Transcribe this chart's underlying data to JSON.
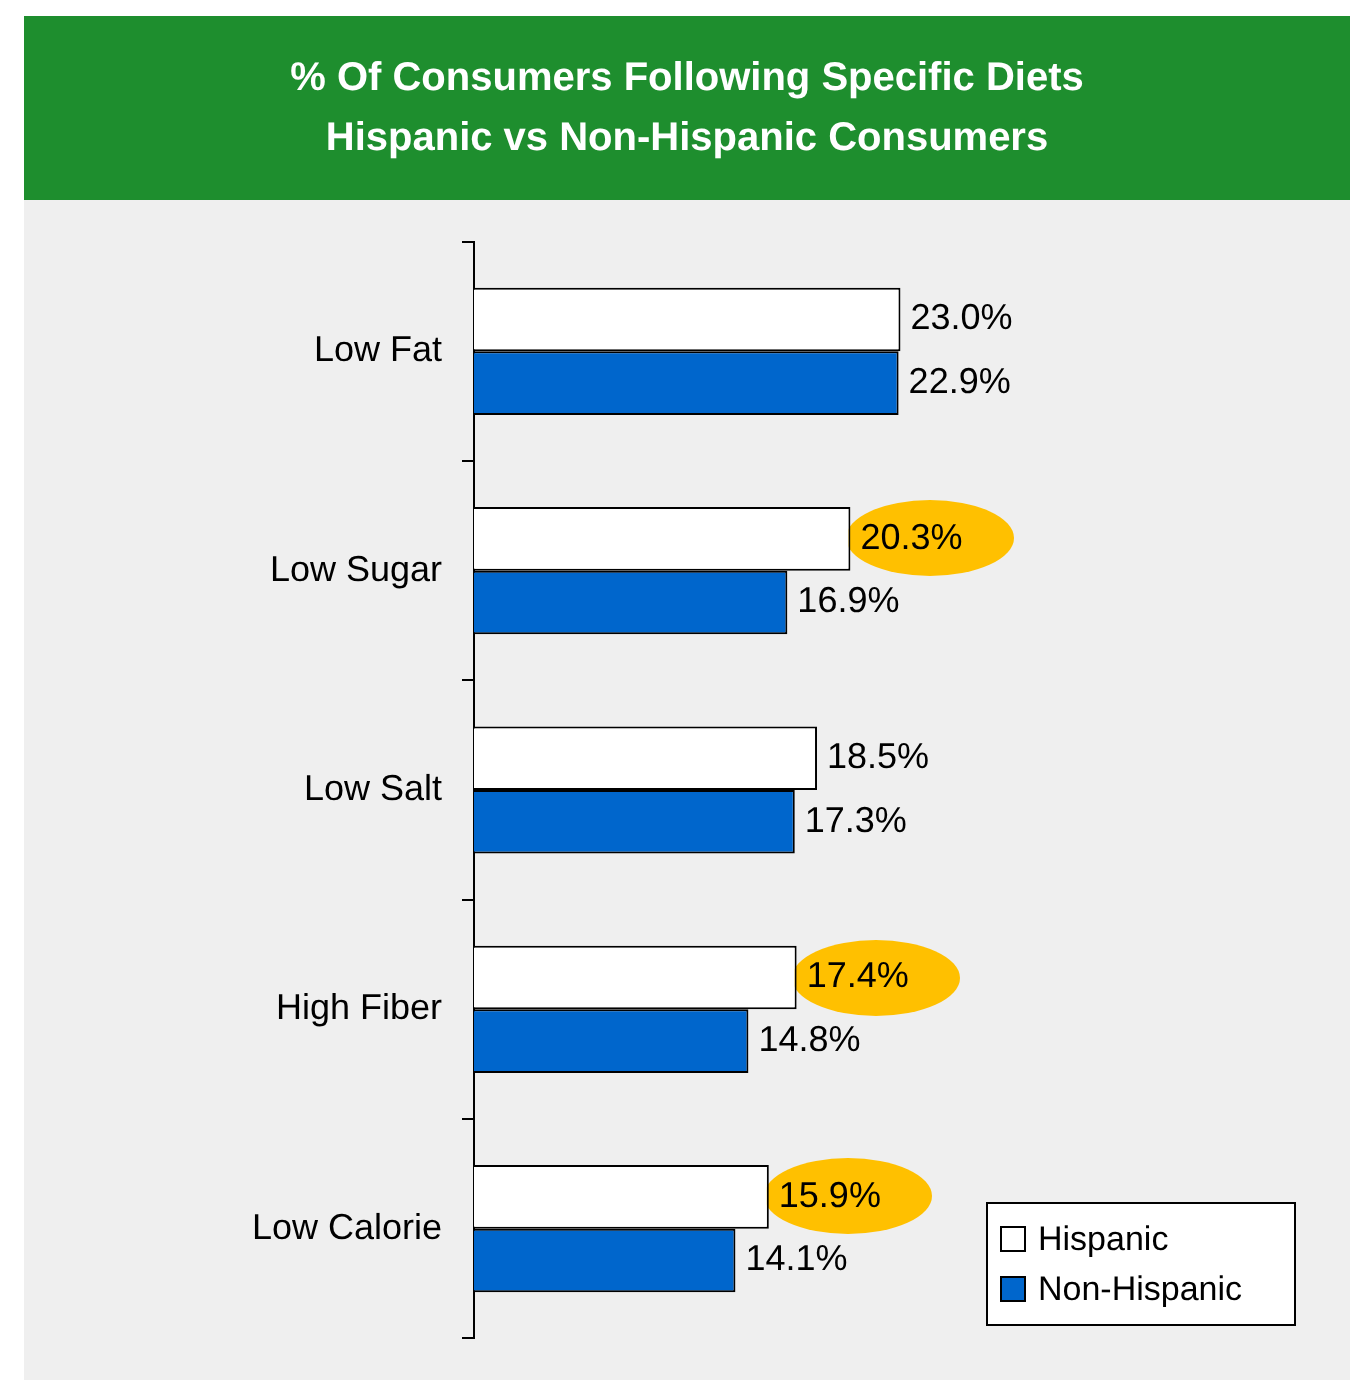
{
  "chart_data": {
    "type": "bar",
    "orientation": "horizontal",
    "title": "% Of Consumers Following Specific Diets\nHispanic vs Non-Hispanic Consumers",
    "categories": [
      "Low Fat",
      "Low Sugar",
      "Low Salt",
      "High Fiber",
      "Low Calorie"
    ],
    "series": [
      {
        "name": "Hispanic",
        "color": "#ffffff",
        "values": [
          23.0,
          20.3,
          18.5,
          17.4,
          15.9
        ],
        "value_labels": [
          "23.0%",
          "20.3%",
          "18.5%",
          "17.4%",
          "15.9%"
        ]
      },
      {
        "name": "Non-Hispanic",
        "color": "#0066cc",
        "values": [
          22.9,
          16.9,
          17.3,
          14.8,
          14.1
        ],
        "value_labels": [
          "22.9%",
          "16.9%",
          "17.3%",
          "14.8%",
          "14.1%"
        ]
      }
    ],
    "tick_labels": "y",
    "legend": "bottom right",
    "grid": false
  }
}
